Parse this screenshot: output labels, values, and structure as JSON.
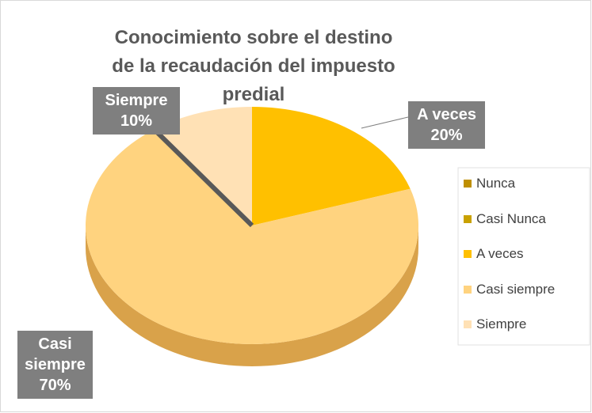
{
  "chart_data": {
    "type": "pie",
    "title": "Conocimiento sobre el destino de la recaudación del impuesto predial",
    "categories": [
      "Nunca",
      "Casi Nunca",
      "A veces",
      "Casi siempre",
      "Siempre"
    ],
    "values": [
      0,
      0,
      20,
      70,
      10
    ],
    "value_labels": [
      null,
      null,
      "20%",
      "70%",
      "10%"
    ],
    "colors": [
      "#bf8f00",
      "#c9a100",
      "#ffc000",
      "#ffd37f",
      "#ffe1b5"
    ],
    "legend": "right"
  }
}
